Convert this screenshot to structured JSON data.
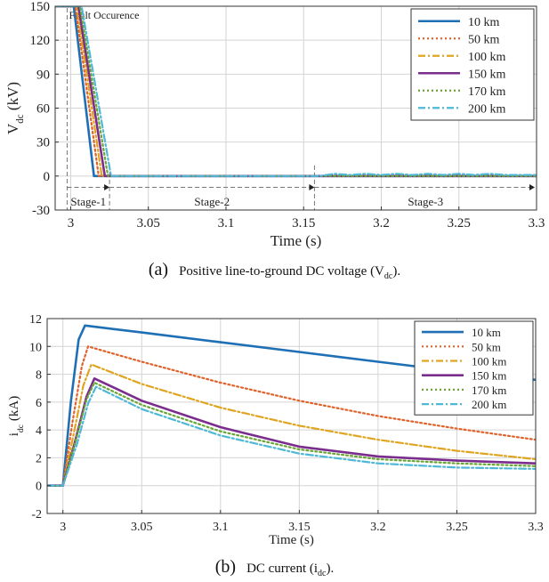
{
  "figure": {
    "panel_a_caption_letter": "(a)",
    "panel_a_caption_main": "Positive line-to-ground DC voltage (V",
    "panel_a_caption_sub": "dc",
    "panel_a_caption_end": ").",
    "panel_b_caption_letter": "(b)",
    "panel_b_caption_main": "DC current (i",
    "panel_b_caption_sub": "dc",
    "panel_b_caption_end": ")."
  },
  "series_styles": [
    {
      "name": "10 km",
      "color": "#1f6fb5",
      "dash": "solid",
      "width": 2.6
    },
    {
      "name": "50 km",
      "color": "#e0622a",
      "dash": "dot",
      "width": 2.2
    },
    {
      "name": "100 km",
      "color": "#e0a520",
      "dash": "dashdot",
      "width": 2.2
    },
    {
      "name": "150 km",
      "color": "#7b2d8e",
      "dash": "solid",
      "width": 2.6
    },
    {
      "name": "170 km",
      "color": "#6aa536",
      "dash": "dot",
      "width": 2.2
    },
    {
      "name": "200 km",
      "color": "#4fb8d6",
      "dash": "dashdot",
      "width": 2.2
    }
  ],
  "chart_data": [
    {
      "type": "line",
      "title": "",
      "xlabel": "Time (s)",
      "ylabel_main": "V",
      "ylabel_sub": "dc",
      "ylabel_end": " (kV)",
      "xlim": [
        2.99,
        3.3
      ],
      "ylim": [
        -30,
        150
      ],
      "xticks": [
        3,
        3.05,
        3.1,
        3.15,
        3.2,
        3.25,
        3.3
      ],
      "xtick_labels": [
        "3",
        "3.05",
        "3.1",
        "3.15",
        "3.2",
        "3.25",
        "3.3"
      ],
      "yticks": [
        -30,
        0,
        30,
        60,
        90,
        120,
        150
      ],
      "ytick_labels": [
        "-30",
        "0",
        "30",
        "60",
        "90",
        "120",
        "150"
      ],
      "grid": true,
      "legend_position": "top-right",
      "annotations": {
        "fault": "Fault Occurence",
        "stage1": "Stage-1",
        "stage2": "Stage-2",
        "stage3": "Stage-3",
        "fault_time": 3.0,
        "stage1_end": 3.025,
        "stage2_end": 3.157,
        "arrow_level": -10
      },
      "series": [
        {
          "name": "10 km",
          "x": [
            2.99,
            3.0,
            3.002,
            3.015,
            3.3
          ],
          "y": [
            150,
            150,
            150,
            0,
            0
          ]
        },
        {
          "name": "50 km",
          "x": [
            2.99,
            3.0,
            3.003,
            3.018,
            3.3
          ],
          "y": [
            150,
            150,
            150,
            0,
            0
          ]
        },
        {
          "name": "100 km",
          "x": [
            2.99,
            3.0,
            3.004,
            3.02,
            3.3
          ],
          "y": [
            150,
            150,
            150,
            0,
            0
          ]
        },
        {
          "name": "150 km",
          "x": [
            2.99,
            3.0,
            3.005,
            3.022,
            3.3
          ],
          "y": [
            150,
            150,
            150,
            0,
            0
          ]
        },
        {
          "name": "170 km",
          "x": [
            2.99,
            3.0,
            3.006,
            3.024,
            3.3
          ],
          "y": [
            150,
            150,
            150,
            0,
            0
          ]
        },
        {
          "name": "200 km",
          "x": [
            2.99,
            3.0,
            3.007,
            3.026,
            3.16,
            3.17,
            3.18,
            3.19,
            3.2,
            3.21,
            3.22,
            3.23,
            3.24,
            3.25,
            3.26,
            3.27,
            3.28,
            3.29,
            3.3
          ],
          "y": [
            150,
            150,
            150,
            0,
            0,
            2,
            1,
            2,
            1,
            2,
            1,
            2,
            1,
            2,
            1,
            2,
            1,
            1,
            1
          ]
        }
      ]
    },
    {
      "type": "line",
      "title": "",
      "xlabel": "Time (s)",
      "ylabel_main": "i",
      "ylabel_sub": "dc",
      "ylabel_end": " (kA)",
      "xlim": [
        2.99,
        3.3
      ],
      "ylim": [
        -2,
        12
      ],
      "xticks": [
        3,
        3.05,
        3.1,
        3.15,
        3.2,
        3.25,
        3.3
      ],
      "xtick_labels": [
        "3",
        "3.05",
        "3.1",
        "3.15",
        "3.2",
        "3.25",
        "3.3"
      ],
      "yticks": [
        -2,
        0,
        2,
        4,
        6,
        8,
        10,
        12
      ],
      "ytick_labels": [
        "-2",
        "0",
        "2",
        "4",
        "6",
        "8",
        "10",
        "12"
      ],
      "grid": true,
      "legend_position": "top-right",
      "series": [
        {
          "name": "10 km",
          "x": [
            2.99,
            3.0,
            3.005,
            3.01,
            3.014,
            3.05,
            3.1,
            3.15,
            3.2,
            3.25,
            3.3
          ],
          "y": [
            0,
            0,
            6,
            10.5,
            11.5,
            11.0,
            10.3,
            9.6,
            8.9,
            8.2,
            7.6
          ]
        },
        {
          "name": "50 km",
          "x": [
            2.99,
            3.0,
            3.006,
            3.012,
            3.016,
            3.05,
            3.1,
            3.15,
            3.2,
            3.25,
            3.3
          ],
          "y": [
            0,
            0,
            4.5,
            8.6,
            10.0,
            8.9,
            7.4,
            6.1,
            5.0,
            4.1,
            3.3
          ]
        },
        {
          "name": "100 km",
          "x": [
            2.99,
            3.0,
            3.007,
            3.013,
            3.018,
            3.05,
            3.1,
            3.15,
            3.2,
            3.25,
            3.3
          ],
          "y": [
            0,
            0,
            3.8,
            7.2,
            8.7,
            7.3,
            5.6,
            4.3,
            3.3,
            2.5,
            1.9
          ]
        },
        {
          "name": "150 km",
          "x": [
            2.99,
            3.0,
            3.008,
            3.015,
            3.02,
            3.05,
            3.1,
            3.15,
            3.2,
            3.25,
            3.3
          ],
          "y": [
            0,
            0,
            3.3,
            6.4,
            7.7,
            6.1,
            4.2,
            2.8,
            2.1,
            1.8,
            1.6
          ]
        },
        {
          "name": "170 km",
          "x": [
            2.99,
            3.0,
            3.008,
            3.015,
            3.02,
            3.05,
            3.1,
            3.15,
            3.2,
            3.25,
            3.3
          ],
          "y": [
            0,
            0,
            3.2,
            6.2,
            7.4,
            5.8,
            3.9,
            2.6,
            1.9,
            1.6,
            1.4
          ]
        },
        {
          "name": "200 km",
          "x": [
            2.99,
            3.0,
            3.009,
            3.016,
            3.021,
            3.05,
            3.1,
            3.15,
            3.2,
            3.25,
            3.3
          ],
          "y": [
            0,
            0,
            3.0,
            5.9,
            7.1,
            5.5,
            3.6,
            2.3,
            1.6,
            1.3,
            1.2
          ]
        }
      ]
    }
  ]
}
